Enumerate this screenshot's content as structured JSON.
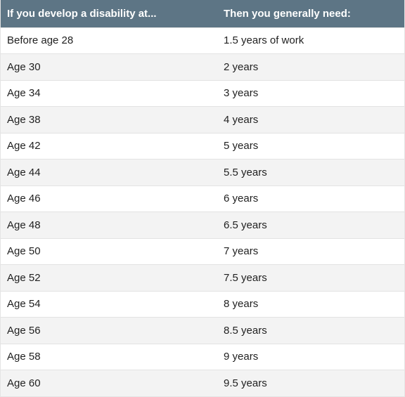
{
  "table": {
    "headers": [
      "If you develop a disability at...",
      "Then you generally need:"
    ],
    "rows": [
      [
        "Before age 28",
        "1.5 years of work"
      ],
      [
        "Age 30",
        "2 years"
      ],
      [
        "Age 34",
        "3 years"
      ],
      [
        "Age 38",
        "4 years"
      ],
      [
        "Age 42",
        "5 years"
      ],
      [
        "Age 44",
        "5.5 years"
      ],
      [
        "Age 46",
        "6 years"
      ],
      [
        "Age 48",
        "6.5 years"
      ],
      [
        "Age 50",
        "7 years"
      ],
      [
        "Age 52",
        "7.5 years"
      ],
      [
        "Age 54",
        "8 years"
      ],
      [
        "Age 56",
        "8.5 years"
      ],
      [
        "Age 58",
        "9 years"
      ],
      [
        "Age 60",
        "9.5 years"
      ]
    ]
  },
  "colors": {
    "header_background": "#5d7585",
    "header_text": "#ffffff",
    "row_alt_background": "#f3f3f3",
    "row_background": "#ffffff",
    "text": "#1f1f1f"
  }
}
